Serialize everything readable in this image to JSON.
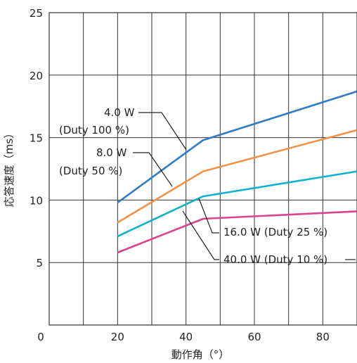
{
  "chart_data": {
    "type": "line",
    "title": "",
    "xlabel": "動作角（°）",
    "ylabel": "応答速度（ms）",
    "xlim": [
      0,
      90
    ],
    "ylim": [
      0,
      25
    ],
    "x_ticks": [
      "0",
      "20",
      "40",
      "60",
      "80"
    ],
    "y_ticks": [
      "5",
      "10",
      "15",
      "20",
      "25"
    ],
    "grid": true,
    "series": [
      {
        "name": "4.0W (Duty 100%)",
        "color": "#2f7bc4",
        "points": [
          [
            20,
            9.8
          ],
          [
            45,
            14.8
          ],
          [
            90,
            18.7
          ]
        ]
      },
      {
        "name": "8.0W (Duty 50%)",
        "color": "#f0924a",
        "points": [
          [
            20,
            8.2
          ],
          [
            45,
            12.3
          ],
          [
            90,
            15.6
          ]
        ]
      },
      {
        "name": "16.0W (Duty 25%)",
        "color": "#11b2c8",
        "points": [
          [
            20,
            7.1
          ],
          [
            45,
            10.3
          ],
          [
            90,
            12.3
          ]
        ]
      },
      {
        "name": "40.0W (Duty 10%)",
        "color": "#d9448a",
        "points": [
          [
            20,
            5.8
          ],
          [
            45,
            8.5
          ],
          [
            90,
            9.1
          ]
        ]
      }
    ],
    "annotations": [
      "4.0 W",
      "(Duty 100 %)",
      "8.0 W",
      "(Duty 50 %)",
      "16.0 W (Duty 25 %)",
      "40.0 W (Duty 10 %)"
    ]
  }
}
